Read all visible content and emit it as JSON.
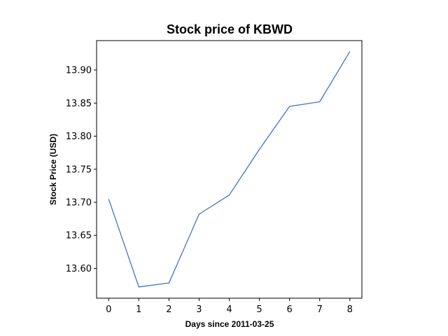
{
  "chart_data": {
    "type": "line",
    "title": "Stock price of KBWD",
    "xlabel": "Days since 2011-03-25",
    "ylabel": "Stock Price (USD)",
    "x": [
      0,
      1,
      2,
      3,
      4,
      5,
      6,
      7,
      8
    ],
    "series": [
      {
        "values": [
          13.705,
          13.572,
          13.578,
          13.682,
          13.711,
          13.78,
          13.845,
          13.852,
          13.928
        ]
      }
    ],
    "xlim": [
      -0.4,
      8.4
    ],
    "ylim": [
      13.555,
      13.9445
    ],
    "xticks": [
      0,
      1,
      2,
      3,
      4,
      5,
      6,
      7,
      8
    ],
    "yticks": [
      "13.60",
      "13.65",
      "13.70",
      "13.75",
      "13.80",
      "13.85",
      "13.90"
    ],
    "line_color": "#4472c4",
    "grid": false
  }
}
